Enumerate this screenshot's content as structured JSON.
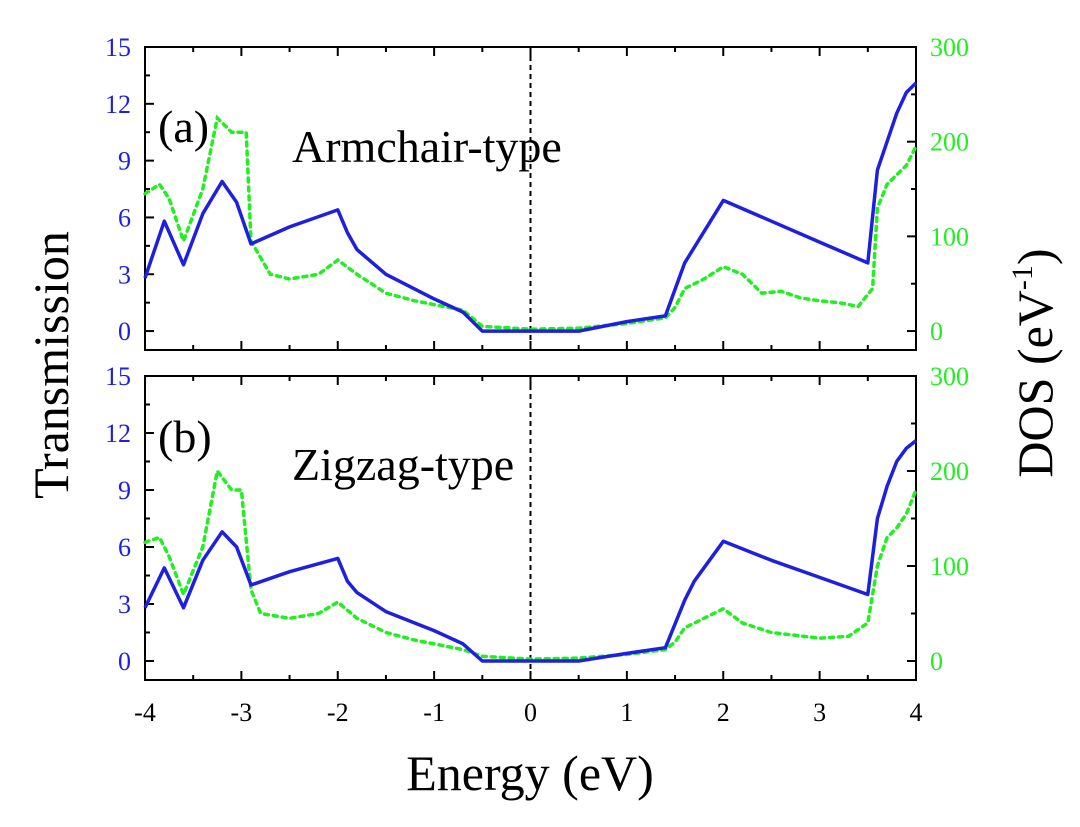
{
  "chart_data": {
    "type": "line",
    "xlabel": "Energy (eV)",
    "ylabel_left": "Transmission",
    "ylabel_right_base": "DOS (eV",
    "ylabel_right_sup": "-1",
    "ylabel_right_close": ")",
    "xlim": [
      -4,
      4
    ],
    "xticks": [
      -4,
      -3,
      -2,
      -1,
      0,
      1,
      2,
      3,
      4
    ],
    "fermi_line_x": 0,
    "colors": {
      "transmission": "#1f1fe0",
      "dos": "#22ee22",
      "axis": "#000000",
      "fermi": "#000000"
    },
    "panels": [
      {
        "id": "a",
        "tag": "(a)",
        "title": "Armchair-type",
        "transmission_ylim": [
          -1,
          15
        ],
        "transmission_ticks": [
          0,
          3,
          6,
          9,
          12,
          15
        ],
        "dos_ylim": [
          -20,
          300
        ],
        "dos_ticks": [
          0,
          100,
          200,
          300
        ],
        "series": [
          {
            "name": "Transmission",
            "axis": "left",
            "style": "solid",
            "x": [
              -4.0,
              -3.8,
              -3.6,
              -3.4,
              -3.2,
              -3.05,
              -2.9,
              -2.5,
              -2.0,
              -1.9,
              -1.8,
              -1.5,
              -1.0,
              -0.7,
              -0.5,
              0.5,
              1.0,
              1.4,
              1.6,
              2.0,
              2.5,
              3.0,
              3.5,
              3.6,
              3.8,
              3.9,
              4.0
            ],
            "y": [
              2.8,
              5.8,
              3.5,
              6.2,
              7.9,
              6.8,
              4.6,
              5.5,
              6.4,
              5.2,
              4.3,
              3.0,
              1.7,
              1.0,
              0.0,
              0.0,
              0.5,
              0.8,
              3.6,
              6.9,
              5.8,
              4.7,
              3.6,
              8.5,
              11.5,
              12.6,
              13.1
            ]
          },
          {
            "name": "DOS",
            "axis": "right",
            "style": "dotted",
            "x": [
              -4.0,
              -3.85,
              -3.75,
              -3.6,
              -3.4,
              -3.25,
              -3.1,
              -2.95,
              -2.9,
              -2.7,
              -2.5,
              -2.2,
              -2.0,
              -1.8,
              -1.5,
              -1.2,
              -1.0,
              -0.7,
              -0.5,
              0.0,
              0.5,
              1.0,
              1.4,
              1.5,
              1.6,
              1.8,
              2.0,
              2.2,
              2.4,
              2.6,
              2.8,
              3.0,
              3.2,
              3.4,
              3.55,
              3.6,
              3.7,
              3.8,
              3.9,
              4.0
            ],
            "y": [
              145,
              155,
              140,
              95,
              150,
              225,
              210,
              210,
              95,
              60,
              55,
              60,
              75,
              60,
              40,
              32,
              28,
              22,
              5,
              2,
              3,
              8,
              14,
              25,
              45,
              55,
              68,
              60,
              40,
              42,
              35,
              32,
              30,
              26,
              45,
              130,
              155,
              165,
              175,
              195
            ]
          }
        ]
      },
      {
        "id": "b",
        "tag": "(b)",
        "title": "Zigzag-type",
        "transmission_ylim": [
          -1,
          15
        ],
        "transmission_ticks": [
          0,
          3,
          6,
          9,
          12,
          15
        ],
        "dos_ylim": [
          -20,
          300
        ],
        "dos_ticks": [
          0,
          100,
          200,
          300
        ],
        "series": [
          {
            "name": "Transmission",
            "axis": "left",
            "style": "solid",
            "x": [
              -4.0,
              -3.8,
              -3.6,
              -3.4,
              -3.2,
              -3.05,
              -2.9,
              -2.5,
              -2.0,
              -1.9,
              -1.8,
              -1.5,
              -1.0,
              -0.7,
              -0.5,
              0.5,
              1.0,
              1.4,
              1.6,
              1.7,
              2.0,
              2.5,
              3.0,
              3.5,
              3.6,
              3.7,
              3.8,
              3.9,
              4.0
            ],
            "y": [
              2.8,
              4.9,
              2.8,
              5.3,
              6.8,
              6.0,
              4.0,
              4.7,
              5.4,
              4.2,
              3.6,
              2.6,
              1.6,
              0.9,
              0.0,
              0.0,
              0.4,
              0.7,
              3.2,
              4.2,
              6.3,
              5.3,
              4.4,
              3.5,
              7.5,
              9.2,
              10.5,
              11.2,
              11.6
            ]
          },
          {
            "name": "DOS",
            "axis": "right",
            "style": "dotted",
            "x": [
              -4.0,
              -3.85,
              -3.75,
              -3.6,
              -3.4,
              -3.25,
              -3.1,
              -3.0,
              -2.9,
              -2.8,
              -2.5,
              -2.2,
              -2.0,
              -1.8,
              -1.5,
              -1.2,
              -1.0,
              -0.7,
              -0.5,
              0.0,
              0.5,
              1.0,
              1.4,
              1.5,
              1.6,
              1.8,
              2.0,
              2.2,
              2.5,
              3.0,
              3.3,
              3.5,
              3.6,
              3.7,
              3.8,
              3.9,
              4.0
            ],
            "y": [
              125,
              130,
              110,
              70,
              120,
              200,
              180,
              180,
              75,
              50,
              45,
              50,
              62,
              45,
              30,
              22,
              18,
              12,
              5,
              2,
              3,
              7,
              12,
              20,
              35,
              45,
              55,
              40,
              30,
              24,
              26,
              40,
              100,
              130,
              140,
              155,
              180
            ]
          }
        ]
      }
    ]
  }
}
